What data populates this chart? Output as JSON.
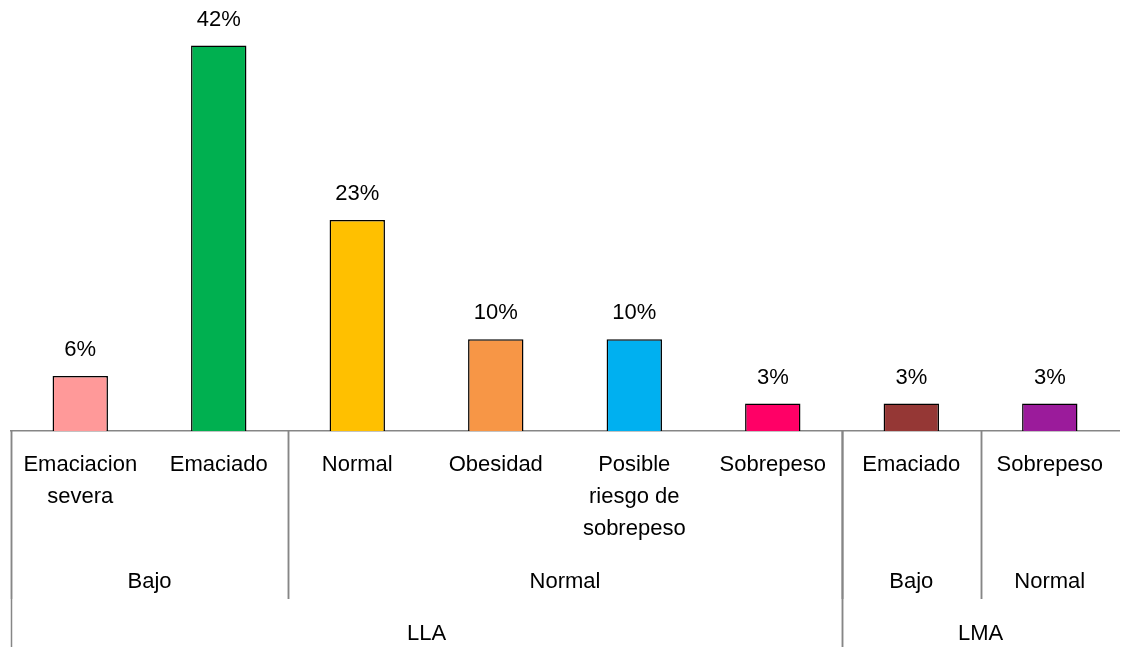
{
  "chart_data": {
    "type": "bar",
    "categories": [
      "Emaciacion severa",
      "Emaciado",
      "Normal",
      "Obesidad",
      "Posible riesgo de sobrepeso",
      "Sobrepeso",
      "Emaciado",
      "Sobrepeso"
    ],
    "values": [
      6,
      42,
      23,
      10,
      10,
      3,
      3,
      3
    ],
    "colors": [
      "#ff9999",
      "#00b050",
      "#ffc000",
      "#f79646",
      "#00b0f0",
      "#ff0066",
      "#953735",
      "#9b1b9b"
    ],
    "value_labels": [
      "6%",
      "42%",
      "23%",
      "10%",
      "10%",
      "3%",
      "3%",
      "3%"
    ],
    "annotations": [
      "Bajo",
      "Normal",
      "Bajo",
      "Normal",
      "LLA",
      "LMA"
    ],
    "tick_labels": "x"
  }
}
